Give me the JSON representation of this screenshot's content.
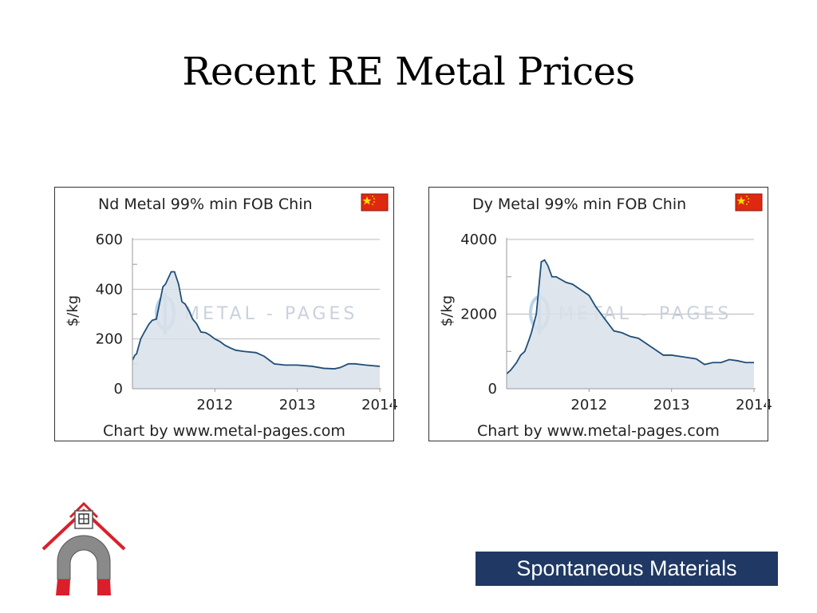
{
  "slide": {
    "title": "Recent RE Metal Prices"
  },
  "chart_data": [
    {
      "type": "area",
      "title": "Nd Metal 99% min FOB Chin",
      "flag": "china-flag",
      "ylabel": "$/kg",
      "ylim": [
        0,
        600
      ],
      "yticks": [
        "0",
        "200",
        "400",
        "600"
      ],
      "xlim": [
        2011.0,
        2014.0
      ],
      "xticks": [
        "2012",
        "2013",
        "2014"
      ],
      "watermark": "METAL - PAGES",
      "credit": "Chart by www.metal-pages.com",
      "grid": true,
      "series": [
        {
          "x": [
            2011.0,
            2011.03,
            2011.05,
            2011.1,
            2011.14,
            2011.2,
            2011.24,
            2011.29,
            2011.33,
            2011.37,
            2011.4,
            2011.47,
            2011.51,
            2011.56,
            2011.6,
            2011.64,
            2011.69,
            2011.73,
            2011.78,
            2011.83,
            2011.89,
            2011.94,
            2012.0,
            2012.06,
            2012.12,
            2012.18,
            2012.25,
            2012.35,
            2012.5,
            2012.6,
            2012.72,
            2012.85,
            2013.0,
            2013.18,
            2013.32,
            2013.45,
            2013.52,
            2013.62,
            2013.7,
            2013.83,
            2014.0
          ],
          "y": [
            115,
            135,
            140,
            200,
            225,
            260,
            275,
            280,
            345,
            410,
            420,
            470,
            470,
            420,
            350,
            340,
            310,
            280,
            260,
            228,
            225,
            215,
            200,
            190,
            175,
            165,
            155,
            150,
            145,
            130,
            100,
            95,
            95,
            90,
            82,
            80,
            85,
            100,
            100,
            95,
            90
          ]
        }
      ]
    },
    {
      "type": "area",
      "title": "Dy Metal 99% min FOB Chin",
      "flag": "china-flag",
      "ylabel": "$/kg",
      "ylim": [
        0,
        4000
      ],
      "yticks": [
        "0",
        "2000",
        "4000"
      ],
      "xlim": [
        2011.0,
        2014.0
      ],
      "xticks": [
        "2012",
        "2013",
        "2014"
      ],
      "watermark": "METAL - PAGES",
      "credit": "Chart by www.metal-pages.com",
      "grid": true,
      "series": [
        {
          "x": [
            2011.0,
            2011.05,
            2011.12,
            2011.17,
            2011.22,
            2011.27,
            2011.3,
            2011.36,
            2011.42,
            2011.46,
            2011.5,
            2011.55,
            2011.6,
            2011.72,
            2011.8,
            2011.9,
            2012.0,
            2012.08,
            2012.18,
            2012.3,
            2012.4,
            2012.5,
            2012.6,
            2012.7,
            2012.8,
            2012.9,
            2013.0,
            2013.15,
            2013.3,
            2013.4,
            2013.5,
            2013.6,
            2013.7,
            2013.8,
            2013.9,
            2014.0
          ],
          "y": [
            400,
            500,
            700,
            900,
            1000,
            1300,
            1500,
            2000,
            3400,
            3450,
            3300,
            3000,
            3000,
            2850,
            2800,
            2650,
            2500,
            2200,
            1900,
            1550,
            1500,
            1400,
            1350,
            1200,
            1050,
            900,
            900,
            850,
            800,
            650,
            700,
            700,
            780,
            750,
            700,
            700
          ]
        }
      ]
    }
  ],
  "footer": {
    "brand": "Spontaneous Materials",
    "logo": "magnet-schoolhouse-logo"
  },
  "colors": {
    "line": "#1f4e79",
    "fill": "#d8e0ea",
    "grid": "#b8b8b8",
    "axis": "#999999",
    "flag_red": "#de2910",
    "flag_yellow": "#ffde00",
    "brand_bg": "#1f3864",
    "logo_red": "#d9202a",
    "logo_gray": "#8a8a8a"
  }
}
